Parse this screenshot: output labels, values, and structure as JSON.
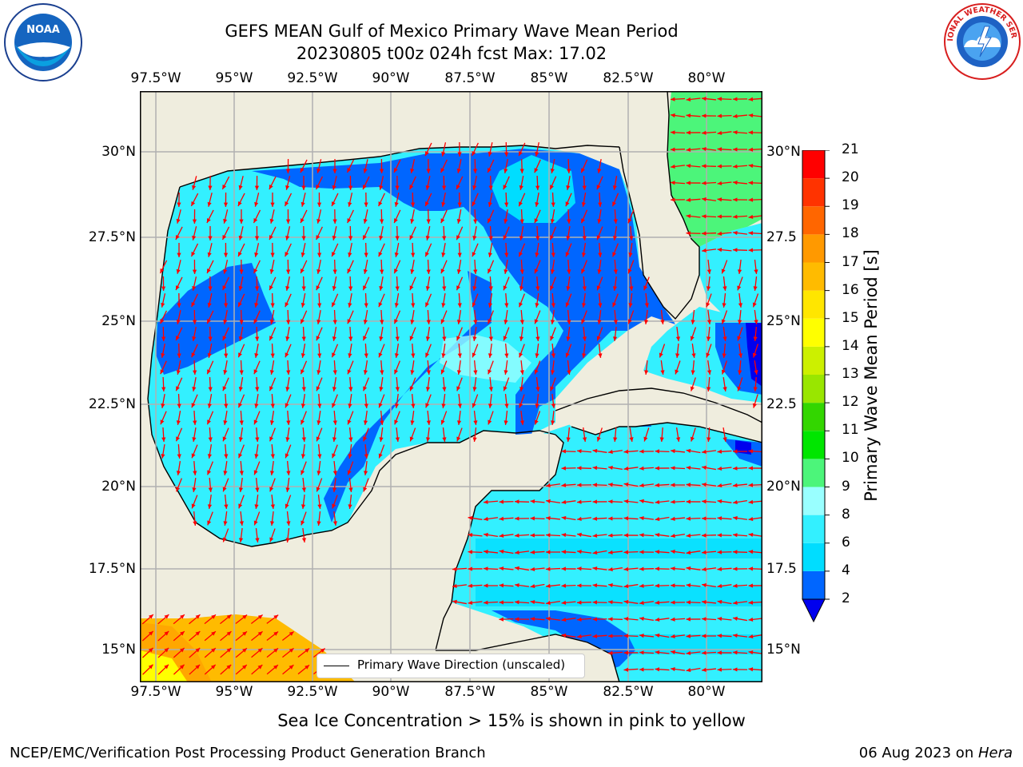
{
  "title": {
    "line1": "GEFS MEAN Gulf of Mexico Primary Wave Mean Period",
    "line2": "20230805 t00z 024h fcst   Max: 17.02"
  },
  "map": {
    "lon_labels": [
      "97.5°W",
      "95°W",
      "92.5°W",
      "90°W",
      "87.5°W",
      "85°W",
      "82.5°W",
      "80°W"
    ],
    "lat_labels_left": [
      "30°N",
      "27.5°N",
      "25°N",
      "22.5°N",
      "20°N",
      "17.5°N",
      "15°N"
    ],
    "lat_labels_right": [
      "30°N",
      "27.5",
      "25°N",
      "22.5",
      "20°N",
      "17.5",
      "15°N"
    ],
    "legend": "Primary Wave Direction (unscaled)",
    "colors": {
      "land": "#efedde",
      "grid": "#b0b0b0",
      "arrow": "#ff0000"
    }
  },
  "colorbar": {
    "label": "Primary Wave Mean Period [s]",
    "ticks": [
      "2",
      "4",
      "6",
      "8",
      "9",
      "10",
      "11",
      "12",
      "13",
      "14",
      "15",
      "16",
      "17",
      "18",
      "19",
      "20",
      "21"
    ],
    "colors": [
      "#0066ff",
      "#00ddff",
      "#33f0ff",
      "#99ffff",
      "#4cf57a",
      "#00e600",
      "#33d600",
      "#99e600",
      "#ccf000",
      "#ffff00",
      "#ffe600",
      "#ffbb00",
      "#ff9900",
      "#ff6600",
      "#ff3300",
      "#ff0000"
    ],
    "under_color": "#0000ee"
  },
  "notes": {
    "sea_ice": "Sea Ice Concentration > 15% is shown in pink to yellow"
  },
  "footer": {
    "left": "NCEP/EMC/Verification Post Processing Product Generation Branch",
    "right_date": "06 Aug 2023 on ",
    "right_host": "Hera"
  },
  "logos": {
    "left_text": "NOAA",
    "right_text": "NATIONAL WEATHER SERVICE"
  }
}
